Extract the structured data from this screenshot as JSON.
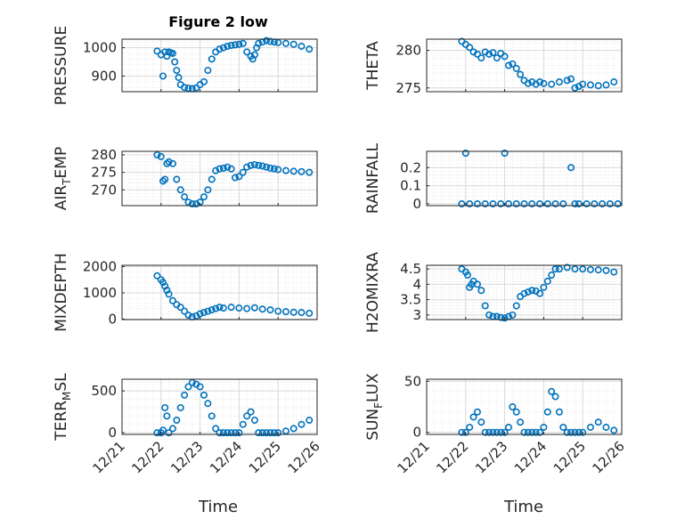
{
  "figure_title": "Figure 2 low",
  "xlabel": "Time",
  "x_ticks": [
    "12/21",
    "12/22",
    "12/23",
    "12/24",
    "12/25",
    "12/26"
  ],
  "colors": {
    "marker": "#0072BD",
    "axis": "#262626",
    "grid": "#d9d9d9",
    "background": "#ffffff"
  },
  "chart_data": [
    {
      "type": "scatter",
      "title": "Figure 2 low",
      "ylabel": "PRESSURE",
      "xlabel": "",
      "xlim": [
        "12/21",
        "12/26"
      ],
      "ylim": [
        845,
        1030
      ],
      "yticks": [
        900,
        1000
      ],
      "x": [
        0.9,
        1.0,
        1.05,
        1.1,
        1.15,
        1.2,
        1.25,
        1.3,
        1.35,
        1.4,
        1.45,
        1.5,
        1.6,
        1.7,
        1.8,
        1.9,
        2.0,
        2.1,
        2.2,
        2.3,
        2.4,
        2.5,
        2.6,
        2.7,
        2.8,
        2.9,
        3.0,
        3.1,
        3.2,
        3.3,
        3.35,
        3.4,
        3.45,
        3.5,
        3.6,
        3.7,
        3.8,
        3.9,
        4.0,
        4.2,
        4.4,
        4.6,
        4.8
      ],
      "y": [
        988,
        975,
        900,
        985,
        970,
        985,
        982,
        980,
        950,
        920,
        895,
        870,
        860,
        857,
        856,
        858,
        870,
        880,
        920,
        960,
        985,
        995,
        1000,
        1005,
        1008,
        1010,
        1012,
        1015,
        985,
        970,
        960,
        975,
        1000,
        1015,
        1020,
        1025,
        1022,
        1020,
        1018,
        1015,
        1012,
        1005,
        995
      ]
    },
    {
      "type": "scatter",
      "title": "",
      "ylabel": "THETA",
      "xlabel": "",
      "xlim": [
        "12/21",
        "12/26"
      ],
      "ylim": [
        274.5,
        281.5
      ],
      "yticks": [
        275,
        280
      ],
      "x": [
        0.9,
        1.0,
        1.1,
        1.2,
        1.3,
        1.4,
        1.5,
        1.6,
        1.7,
        1.8,
        1.9,
        2.0,
        2.1,
        2.2,
        2.3,
        2.4,
        2.5,
        2.6,
        2.7,
        2.8,
        2.9,
        3.0,
        3.2,
        3.4,
        3.6,
        3.7,
        3.8,
        3.9,
        4.0,
        4.2,
        4.4,
        4.6,
        4.8
      ],
      "y": [
        281.2,
        280.8,
        280.4,
        279.8,
        279.5,
        279.0,
        279.8,
        279.5,
        279.7,
        279.0,
        279.6,
        279.2,
        278.0,
        278.2,
        277.6,
        276.8,
        276.0,
        275.6,
        275.8,
        275.5,
        275.8,
        275.6,
        275.5,
        275.8,
        276.0,
        276.2,
        275.0,
        275.2,
        275.5,
        275.4,
        275.3,
        275.4,
        275.8
      ]
    },
    {
      "type": "scatter",
      "title": "",
      "ylabel": "AIR_TEMP",
      "xlabel": "",
      "xlim": [
        "12/21",
        "12/26"
      ],
      "ylim": [
        265.5,
        281
      ],
      "yticks": [
        270,
        275,
        280
      ],
      "x": [
        0.9,
        1.0,
        1.05,
        1.1,
        1.15,
        1.2,
        1.3,
        1.4,
        1.5,
        1.6,
        1.7,
        1.8,
        1.9,
        2.0,
        2.1,
        2.2,
        2.3,
        2.4,
        2.5,
        2.6,
        2.7,
        2.8,
        2.9,
        3.0,
        3.1,
        3.2,
        3.3,
        3.4,
        3.5,
        3.6,
        3.7,
        3.8,
        3.9,
        4.0,
        4.2,
        4.4,
        4.6,
        4.8
      ],
      "y": [
        280.0,
        279.5,
        272.5,
        273.0,
        277.5,
        278.0,
        277.5,
        273.0,
        270.0,
        268.0,
        266.5,
        266.0,
        266.0,
        266.5,
        268.0,
        270.0,
        273.0,
        275.5,
        276.0,
        276.2,
        276.5,
        276.0,
        273.5,
        273.8,
        275.0,
        276.5,
        277.0,
        277.2,
        277.0,
        276.8,
        276.5,
        276.2,
        276.0,
        275.8,
        275.5,
        275.3,
        275.2,
        275.0
      ]
    },
    {
      "type": "scatter",
      "title": "",
      "ylabel": "RAINFALL",
      "xlabel": "",
      "xlim": [
        "12/21",
        "12/26"
      ],
      "ylim": [
        -0.01,
        0.29
      ],
      "yticks": [
        0,
        0.1,
        0.2
      ],
      "x": [
        0.9,
        1.0,
        1.1,
        1.3,
        1.5,
        1.7,
        1.9,
        2.0,
        2.1,
        2.3,
        2.5,
        2.7,
        2.9,
        3.1,
        3.3,
        3.5,
        3.7,
        3.8,
        3.9,
        4.1,
        4.3,
        4.5,
        4.7,
        4.9
      ],
      "y": [
        0,
        0.28,
        0,
        0,
        0,
        0,
        0,
        0.28,
        0,
        0,
        0,
        0,
        0,
        0,
        0,
        0,
        0.2,
        0,
        0,
        0,
        0,
        0,
        0,
        0
      ]
    },
    {
      "type": "scatter",
      "title": "",
      "ylabel": "MIXDEPTH",
      "xlabel": "",
      "xlim": [
        "12/21",
        "12/26"
      ],
      "ylim": [
        -20,
        2050
      ],
      "yticks": [
        0,
        1000,
        2000
      ],
      "x": [
        0.9,
        1.0,
        1.05,
        1.1,
        1.15,
        1.2,
        1.3,
        1.4,
        1.5,
        1.6,
        1.7,
        1.8,
        1.9,
        2.0,
        2.1,
        2.2,
        2.3,
        2.4,
        2.5,
        2.6,
        2.8,
        3.0,
        3.2,
        3.4,
        3.6,
        3.8,
        4.0,
        4.2,
        4.4,
        4.6,
        4.8
      ],
      "y": [
        1650,
        1500,
        1400,
        1250,
        1100,
        950,
        700,
        550,
        450,
        300,
        150,
        80,
        120,
        200,
        250,
        300,
        350,
        400,
        450,
        420,
        450,
        420,
        400,
        430,
        380,
        350,
        300,
        280,
        260,
        250,
        220
      ]
    },
    {
      "type": "scatter",
      "title": "",
      "ylabel": "H2OMIXRA",
      "xlabel": "",
      "xlim": [
        "12/21",
        "12/26"
      ],
      "ylim": [
        2.85,
        4.62
      ],
      "yticks": [
        3,
        3.5,
        4,
        4.5
      ],
      "x": [
        0.9,
        1.0,
        1.05,
        1.1,
        1.15,
        1.2,
        1.3,
        1.4,
        1.5,
        1.6,
        1.7,
        1.8,
        1.9,
        2.0,
        2.1,
        2.2,
        2.3,
        2.4,
        2.5,
        2.6,
        2.7,
        2.8,
        2.9,
        3.0,
        3.1,
        3.2,
        3.3,
        3.4,
        3.6,
        3.8,
        4.0,
        4.2,
        4.4,
        4.6,
        4.8
      ],
      "y": [
        4.5,
        4.4,
        4.3,
        3.9,
        4.0,
        4.1,
        4.0,
        3.8,
        3.3,
        3.0,
        2.95,
        2.95,
        2.92,
        2.9,
        2.95,
        3.0,
        3.3,
        3.6,
        3.7,
        3.75,
        3.8,
        3.78,
        3.7,
        3.9,
        4.1,
        4.3,
        4.5,
        4.5,
        4.55,
        4.5,
        4.5,
        4.48,
        4.47,
        4.45,
        4.4
      ]
    },
    {
      "type": "scatter",
      "title": "",
      "ylabel": "TERR_MSL",
      "xlabel": "",
      "xlim": [
        "12/21",
        "12/26"
      ],
      "ylim": [
        -20,
        640
      ],
      "yticks": [
        0,
        500
      ],
      "x": [
        0.9,
        1.0,
        1.05,
        1.1,
        1.15,
        1.2,
        1.3,
        1.4,
        1.5,
        1.6,
        1.7,
        1.8,
        1.9,
        2.0,
        2.1,
        2.2,
        2.3,
        2.4,
        2.5,
        2.6,
        2.7,
        2.8,
        2.9,
        3.0,
        3.1,
        3.2,
        3.3,
        3.4,
        3.5,
        3.6,
        3.7,
        3.8,
        3.9,
        4.0,
        4.2,
        4.4,
        4.6,
        4.8
      ],
      "y": [
        0,
        0,
        30,
        300,
        200,
        0,
        50,
        150,
        300,
        450,
        550,
        600,
        580,
        550,
        450,
        350,
        200,
        50,
        0,
        0,
        0,
        0,
        0,
        0,
        100,
        200,
        250,
        150,
        0,
        0,
        0,
        0,
        0,
        0,
        20,
        50,
        100,
        150
      ]
    },
    {
      "type": "scatter",
      "title": "",
      "ylabel": "SUN_FLUX",
      "xlabel": "",
      "xlim": [
        "12/21",
        "12/26"
      ],
      "ylim": [
        -2,
        52
      ],
      "yticks": [
        0,
        50
      ],
      "x": [
        0.9,
        1.0,
        1.1,
        1.2,
        1.3,
        1.4,
        1.5,
        1.6,
        1.7,
        1.8,
        1.9,
        2.0,
        2.1,
        2.2,
        2.3,
        2.4,
        2.5,
        2.6,
        2.7,
        2.8,
        2.9,
        3.0,
        3.1,
        3.2,
        3.3,
        3.4,
        3.5,
        3.6,
        3.7,
        3.8,
        3.9,
        4.0,
        4.2,
        4.4,
        4.6,
        4.8
      ],
      "y": [
        0,
        0,
        5,
        15,
        20,
        10,
        0,
        0,
        0,
        0,
        0,
        0,
        5,
        25,
        20,
        10,
        0,
        0,
        0,
        0,
        0,
        5,
        20,
        40,
        35,
        20,
        5,
        0,
        0,
        0,
        0,
        0,
        5,
        10,
        5,
        2
      ]
    }
  ],
  "panels": [
    {
      "label_main": "PRESSURE",
      "label_sub": "",
      "label_tail": ""
    },
    {
      "label_main": "THETA",
      "label_sub": "",
      "label_tail": ""
    },
    {
      "label_main": "AIR",
      "label_sub": "T",
      "label_tail": "EMP"
    },
    {
      "label_main": "RAINFALL",
      "label_sub": "",
      "label_tail": ""
    },
    {
      "label_main": "MIXDEPTH",
      "label_sub": "",
      "label_tail": ""
    },
    {
      "label_main": "H2OMIXRA",
      "label_sub": "",
      "label_tail": ""
    },
    {
      "label_main": "TERR",
      "label_sub": "M",
      "label_tail": "SL"
    },
    {
      "label_main": "SUN",
      "label_sub": "F",
      "label_tail": "LUX"
    }
  ]
}
